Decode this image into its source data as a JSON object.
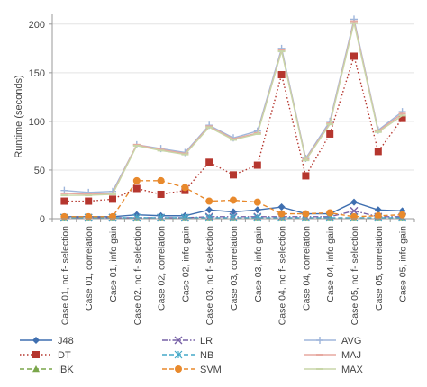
{
  "chart_data": {
    "type": "line",
    "title": "",
    "xlabel": "",
    "ylabel": "Runtime (seconds)",
    "ylim": [
      0,
      210
    ],
    "yticks": [
      0,
      50,
      100,
      150,
      200
    ],
    "grid": "horizontal",
    "legend_position": "bottom",
    "categories": [
      "Case 01, no f- selection",
      "Case 01, correlation",
      "Case 01, info gain",
      "Case 02, no f- selection",
      "Case 02, correlation",
      "Case 02, info gain",
      "Case 03, no f- selection",
      "Case 03, correlation",
      "Case 03, info gain",
      "Case 04, no f- selection",
      "Case 04, correlation",
      "Case 04, info gain",
      "Case 05, no f- selection",
      "Case 05, correlation",
      "Case 05, info gain"
    ],
    "series": [
      {
        "name": "J48",
        "color": "#3f6fb0",
        "marker": "diamond",
        "dash": "solid",
        "values": [
          2,
          2,
          2,
          4,
          3,
          3,
          9,
          7,
          9,
          12,
          5,
          5,
          17,
          9,
          8
        ]
      },
      {
        "name": "DT",
        "color": "#b5362e",
        "marker": "square",
        "dash": "dotted",
        "values": [
          18,
          18,
          20,
          31,
          25,
          29,
          58,
          45,
          55,
          148,
          44,
          87,
          167,
          69,
          103
        ]
      },
      {
        "name": "IBK",
        "color": "#7aa64a",
        "marker": "triangle",
        "dash": "dashed",
        "values": [
          0.5,
          0.5,
          0.5,
          0.5,
          0.5,
          0.5,
          0.5,
          0.5,
          0.5,
          0.5,
          0.5,
          0.5,
          0.5,
          0.5,
          0.5
        ]
      },
      {
        "name": "LR",
        "color": "#7760a6",
        "marker": "x",
        "dash": "dashdot",
        "values": [
          1,
          1,
          1,
          1,
          1,
          1,
          2,
          2,
          2,
          2,
          2,
          2,
          8,
          2,
          2
        ]
      },
      {
        "name": "NB",
        "color": "#45a9c8",
        "marker": "star",
        "dash": "dashed",
        "values": [
          1,
          1,
          1,
          1,
          1,
          1,
          1,
          1,
          1,
          1,
          1,
          1,
          1,
          1,
          1
        ]
      },
      {
        "name": "SVM",
        "color": "#e8892c",
        "marker": "circle",
        "dash": "dashed",
        "values": [
          2,
          2,
          2,
          39,
          39,
          32,
          18,
          19,
          17,
          5,
          5,
          6,
          2,
          3,
          4
        ]
      },
      {
        "name": "AVG",
        "color": "#9fb6db",
        "marker": "plus",
        "dash": "solid",
        "values": [
          29,
          27,
          28,
          76,
          72,
          68,
          96,
          83,
          90,
          175,
          62,
          100,
          205,
          91,
          110
        ]
      },
      {
        "name": "MAJ",
        "color": "#e7a9a0",
        "marker": "dash",
        "dash": "solid",
        "values": [
          26,
          25,
          26,
          76,
          71,
          67,
          95,
          82,
          88,
          173,
          61,
          98,
          203,
          90,
          108
        ]
      },
      {
        "name": "MAX",
        "color": "#c8d6a8",
        "marker": "dash",
        "dash": "solid",
        "values": [
          24,
          24,
          25,
          75,
          70,
          66,
          94,
          81,
          87,
          172,
          60,
          97,
          201,
          89,
          106
        ]
      }
    ]
  }
}
